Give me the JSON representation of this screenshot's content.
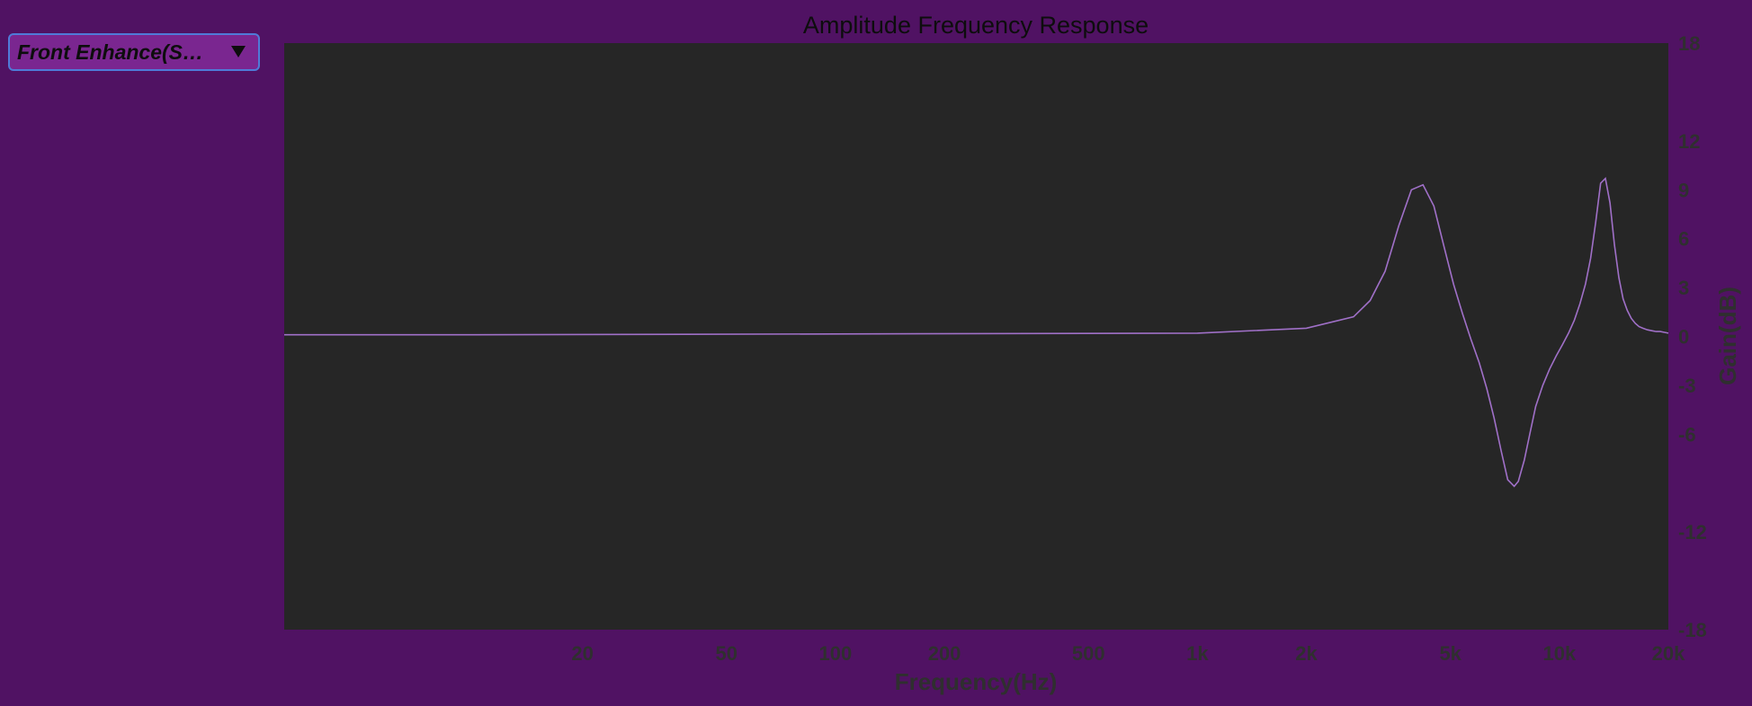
{
  "preset_dropdown": {
    "selected": "Front Enhance(S…"
  },
  "colors": {
    "background": "#501263",
    "plot_background": "#262626",
    "curve": "#a070c8",
    "preset_fill": "#7a2690",
    "preset_border": "#4f7bd8"
  },
  "chart_data": {
    "type": "line",
    "title": "Amplitude Frequency Response",
    "xlabel": "Frequency(Hz)",
    "ylabel": "Gain(dB)",
    "x_scale": "log",
    "xlim": [
      3,
      20000
    ],
    "ylim": [
      -18,
      18
    ],
    "x_ticks": [
      {
        "value": 20,
        "label": "20"
      },
      {
        "value": 50,
        "label": "50"
      },
      {
        "value": 100,
        "label": "100"
      },
      {
        "value": 200,
        "label": "200"
      },
      {
        "value": 500,
        "label": "500"
      },
      {
        "value": 1000,
        "label": "1k"
      },
      {
        "value": 2000,
        "label": "2k"
      },
      {
        "value": 5000,
        "label": "5k"
      },
      {
        "value": 10000,
        "label": "10k"
      },
      {
        "value": 20000,
        "label": "20k"
      }
    ],
    "y_ticks": [
      {
        "value": 18,
        "label": "18"
      },
      {
        "value": 12,
        "label": "12"
      },
      {
        "value": 9,
        "label": "9"
      },
      {
        "value": 6,
        "label": "6"
      },
      {
        "value": 3,
        "label": "3"
      },
      {
        "value": 0,
        "label": "0"
      },
      {
        "value": -3,
        "label": "-3"
      },
      {
        "value": -6,
        "label": "-6"
      },
      {
        "value": -12,
        "label": "-12"
      },
      {
        "value": -18,
        "label": "-18"
      }
    ],
    "grid": false,
    "series": [
      {
        "x": [
          3,
          10,
          100,
          1000,
          2000,
          2700,
          3000,
          3300,
          3600,
          3900,
          4200,
          4500,
          4800,
          5100,
          5400,
          5700,
          6000,
          6300,
          6600,
          6900,
          7200,
          7500,
          7700,
          8000,
          8300,
          8600,
          9000,
          9400,
          9800,
          10200,
          10600,
          11000,
          11400,
          11800,
          12200,
          12600,
          13000,
          13400,
          13800,
          14200,
          14600,
          15000,
          15400,
          15800,
          16200,
          16600,
          17000,
          17500,
          18000,
          18500,
          19000,
          19500,
          20000
        ],
        "y": [
          0.1,
          0.1,
          0.15,
          0.2,
          0.5,
          1.2,
          2.2,
          4.0,
          6.8,
          9.0,
          9.3,
          8.0,
          5.5,
          3.2,
          1.4,
          -0.2,
          -1.6,
          -3.2,
          -5.0,
          -7.0,
          -8.8,
          -9.2,
          -8.9,
          -7.6,
          -5.9,
          -4.3,
          -3.0,
          -2.0,
          -1.2,
          -0.5,
          0.2,
          1.0,
          2.0,
          3.2,
          4.8,
          7.0,
          9.4,
          9.7,
          8.2,
          5.6,
          3.6,
          2.3,
          1.6,
          1.1,
          0.8,
          0.6,
          0.5,
          0.4,
          0.35,
          0.3,
          0.3,
          0.25,
          0.2
        ]
      }
    ]
  }
}
